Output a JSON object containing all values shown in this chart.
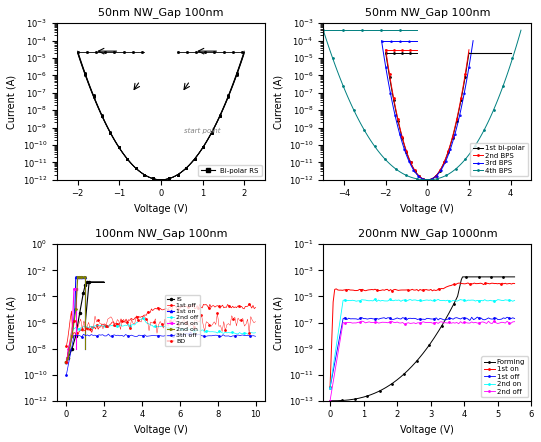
{
  "subplot1": {
    "title": "50nm NW_Gap 100nm",
    "xlabel": "Voltage (V)",
    "ylabel": "Current (A)",
    "xlim": [
      -2.5,
      2.5
    ],
    "ylim": [
      1e-12,
      0.001
    ],
    "legend": [
      "Bi-polar RS"
    ],
    "annotation": "start point",
    "color": "black",
    "n_sweeps": 4,
    "compliance": 2e-05,
    "v_max": 2.0
  },
  "subplot2": {
    "title": "50nm NW_Gap 100nm",
    "xlabel": "Voltage (V)",
    "ylabel": "Current (A)",
    "xlim": [
      -5,
      5
    ],
    "ylim": [
      1e-12,
      0.001
    ],
    "legend": [
      "1st bi-polar",
      "2nd BPS",
      "3rd BPS",
      "4th BPS"
    ],
    "colors": [
      "black",
      "red",
      "blue",
      "teal"
    ],
    "markers": [
      "o",
      "o",
      "^",
      "o"
    ],
    "v_max": [
      2.0,
      2.0,
      2.2,
      4.5
    ],
    "compliance": [
      2e-05,
      3e-05,
      0.0001,
      0.0004
    ]
  },
  "subplot3": {
    "title": "100nm NW_Gap 100nm",
    "xlabel": "Voltage (V)",
    "ylabel": "Current (A)",
    "xlim": [
      -0.5,
      10.5
    ],
    "ylim": [
      1e-12,
      1.0
    ],
    "legend": [
      "IS",
      "1st off",
      "1st on",
      "2nd off",
      "2nd on",
      "2nd on",
      "3th off",
      "BD"
    ],
    "colors": [
      "black",
      "red",
      "blue",
      "cyan",
      "magenta",
      "olive",
      "blue",
      "red"
    ],
    "markers": [
      "o",
      "o",
      "^",
      "o",
      "<",
      ">",
      "o",
      "o"
    ]
  },
  "subplot4": {
    "title": "200nm NW_Gap 1000nm",
    "xlabel": "Voltage (V)",
    "ylabel": "Current (A)",
    "xlim": [
      -0.2,
      6.0
    ],
    "ylim": [
      1e-13,
      0.1
    ],
    "legend": [
      "Forming",
      "1st on",
      "1st off",
      "2nd on",
      "2nd off"
    ],
    "colors": [
      "black",
      "red",
      "blue",
      "cyan",
      "magenta"
    ],
    "markers": [
      "o",
      "o",
      "o",
      "o",
      "o"
    ]
  }
}
